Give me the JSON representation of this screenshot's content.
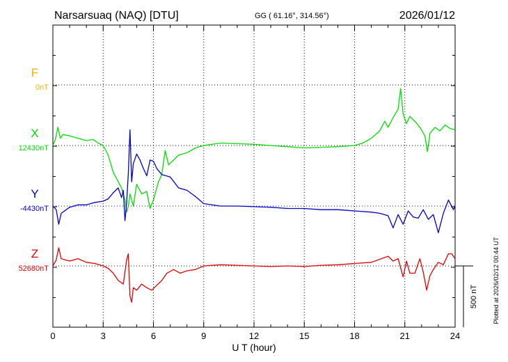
{
  "header": {
    "station": "Narsarsuaq (NAQ)  [DTU]",
    "coords": "GG ( 61.16°, 314.56°)",
    "date": "2026/01/12"
  },
  "footer": {
    "plotted": "Plotted at 2026/02/12 00:44 UT"
  },
  "chart_data": {
    "type": "line",
    "title": "Narsarsuaq (NAQ)  [DTU]",
    "xlabel": "U T (hour)",
    "x_ticks": [
      "0",
      "3",
      "6",
      "9",
      "12",
      "15",
      "18",
      "21",
      "24"
    ],
    "xlim": [
      0,
      24
    ],
    "grid": true,
    "scale_bar": "500 nT",
    "colors": {
      "F": "#f0b400",
      "X": "#00dd00",
      "Y": "#0000cc",
      "Z": "#e00000"
    },
    "series": [
      {
        "name": "F",
        "baseline_label": "0nT",
        "x": [],
        "y": []
      },
      {
        "name": "X",
        "baseline_label": "12430nT",
        "x": [
          0,
          0.15,
          0.3,
          0.45,
          0.6,
          1.0,
          1.5,
          2.0,
          2.4,
          2.7,
          3.0,
          3.3,
          3.6,
          3.9,
          4.1,
          4.3,
          4.4,
          4.5,
          4.6,
          4.8,
          5.0,
          5.3,
          5.6,
          5.8,
          6.0,
          6.3,
          6.5,
          6.7,
          6.9,
          7.2,
          7.5,
          8.0,
          8.5,
          9.0,
          10,
          11,
          12,
          13,
          14,
          15,
          16,
          17,
          18,
          18.5,
          19,
          19.5,
          19.8,
          20.0,
          20.3,
          20.6,
          20.75,
          20.9,
          21.1,
          21.3,
          21.6,
          21.9,
          22.2,
          22.35,
          22.5,
          22.8,
          23.1,
          23.4,
          23.7,
          24
        ],
        "y": [
          0,
          50,
          150,
          60,
          90,
          80,
          60,
          40,
          50,
          20,
          0,
          -80,
          -220,
          -300,
          -350,
          -450,
          -550,
          -500,
          -400,
          -500,
          -320,
          -400,
          -380,
          -520,
          -450,
          -300,
          -240,
          -40,
          -160,
          -120,
          -80,
          -60,
          -20,
          0,
          20,
          15,
          10,
          0,
          -10,
          -20,
          -15,
          -10,
          0,
          20,
          60,
          120,
          200,
          150,
          230,
          300,
          470,
          260,
          180,
          240,
          200,
          150,
          80,
          -50,
          100,
          150,
          120,
          170,
          140,
          130
        ]
      },
      {
        "name": "Y",
        "baseline_label": "-4430nT",
        "x": [
          0,
          0.2,
          0.35,
          0.5,
          1.0,
          1.5,
          2.0,
          2.5,
          3.0,
          3.3,
          3.6,
          3.9,
          4.1,
          4.2,
          4.3,
          4.4,
          4.5,
          4.6,
          4.7,
          4.8,
          5.0,
          5.2,
          5.4,
          5.6,
          5.8,
          6.0,
          6.2,
          6.5,
          7.0,
          7.5,
          8.0,
          8.5,
          9.0,
          10,
          11,
          12,
          13,
          14,
          15,
          16,
          17,
          18,
          19,
          19.5,
          20.0,
          20.3,
          20.6,
          20.9,
          21.2,
          21.5,
          21.8,
          22.1,
          22.4,
          22.7,
          23.0,
          23.3,
          23.6,
          23.9,
          24
        ],
        "y": [
          0,
          -30,
          -150,
          -60,
          -10,
          10,
          10,
          30,
          40,
          60,
          110,
          150,
          70,
          130,
          -120,
          30,
          270,
          630,
          200,
          350,
          430,
          380,
          310,
          250,
          380,
          370,
          310,
          260,
          240,
          150,
          130,
          80,
          20,
          0,
          0,
          -5,
          -10,
          -20,
          -20,
          -30,
          -30,
          -40,
          -50,
          -60,
          -80,
          -180,
          -70,
          -150,
          -40,
          -90,
          -100,
          -30,
          -110,
          -70,
          -220,
          -60,
          50,
          -30,
          0
        ]
      },
      {
        "name": "Z",
        "baseline_label": "52680nT",
        "x": [
          0,
          0.2,
          0.35,
          0.5,
          1.0,
          1.5,
          2.0,
          2.5,
          3.0,
          3.3,
          3.6,
          3.9,
          4.2,
          4.4,
          4.5,
          4.6,
          4.7,
          4.8,
          5.0,
          5.3,
          5.6,
          5.9,
          6.2,
          6.5,
          6.8,
          7.2,
          7.6,
          8.0,
          8.5,
          9.0,
          10,
          11,
          12,
          13,
          14,
          15,
          16,
          17,
          18,
          19,
          20,
          20.3,
          20.6,
          20.9,
          21.1,
          21.3,
          21.6,
          21.9,
          22.1,
          22.3,
          22.5,
          22.7,
          23.0,
          23.3,
          23.6,
          23.8,
          24
        ],
        "y": [
          0,
          50,
          150,
          60,
          40,
          60,
          30,
          20,
          0,
          -20,
          -60,
          -120,
          -150,
          50,
          100,
          -250,
          -300,
          -180,
          -200,
          -150,
          -180,
          -200,
          -160,
          -120,
          -60,
          -30,
          -60,
          -40,
          -30,
          0,
          10,
          5,
          0,
          -5,
          0,
          -5,
          5,
          10,
          20,
          30,
          80,
          40,
          60,
          -90,
          40,
          -60,
          -60,
          60,
          -50,
          -200,
          -80,
          -30,
          30,
          10,
          100,
          100,
          60
        ]
      }
    ]
  }
}
